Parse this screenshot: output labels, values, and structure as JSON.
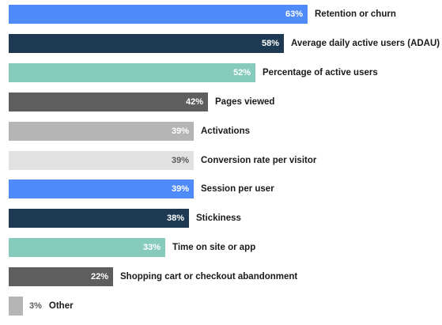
{
  "chart_data": {
    "type": "bar",
    "orientation": "horizontal",
    "categories": [
      "Retention or churn",
      "Average daily active users (ADAU)",
      "Percentage of active users",
      "Pages viewed",
      "Activations",
      "Conversion rate per visitor",
      "Session per user",
      "Stickiness",
      "Time on site or app",
      "Shopping cart or checkout abandonment",
      "Other"
    ],
    "values": [
      63,
      58,
      52,
      42,
      39,
      39,
      39,
      38,
      33,
      22,
      3
    ],
    "value_labels": [
      "63%",
      "58%",
      "52%",
      "42%",
      "39%",
      "39%",
      "39%",
      "38%",
      "33%",
      "22%",
      "3%"
    ],
    "unit": "%",
    "xlim": [
      0,
      100
    ],
    "bar_colors": [
      "#4f8bf9",
      "#1e3a52",
      "#86cbbc",
      "#5e5e5e",
      "#b5b5b5",
      "#e1e1e1",
      "#4f8bf9",
      "#1e3a52",
      "#86cbbc",
      "#5e5e5e",
      "#b5b5b5"
    ],
    "value_label_colors": [
      "#ffffff",
      "#ffffff",
      "#ffffff",
      "#ffffff",
      "#ffffff",
      "#5a5a5a",
      "#ffffff",
      "#ffffff",
      "#ffffff",
      "#ffffff",
      "#5a5a5a"
    ],
    "grid": false,
    "legend": "none",
    "title": "",
    "xlabel": "",
    "ylabel": ""
  }
}
